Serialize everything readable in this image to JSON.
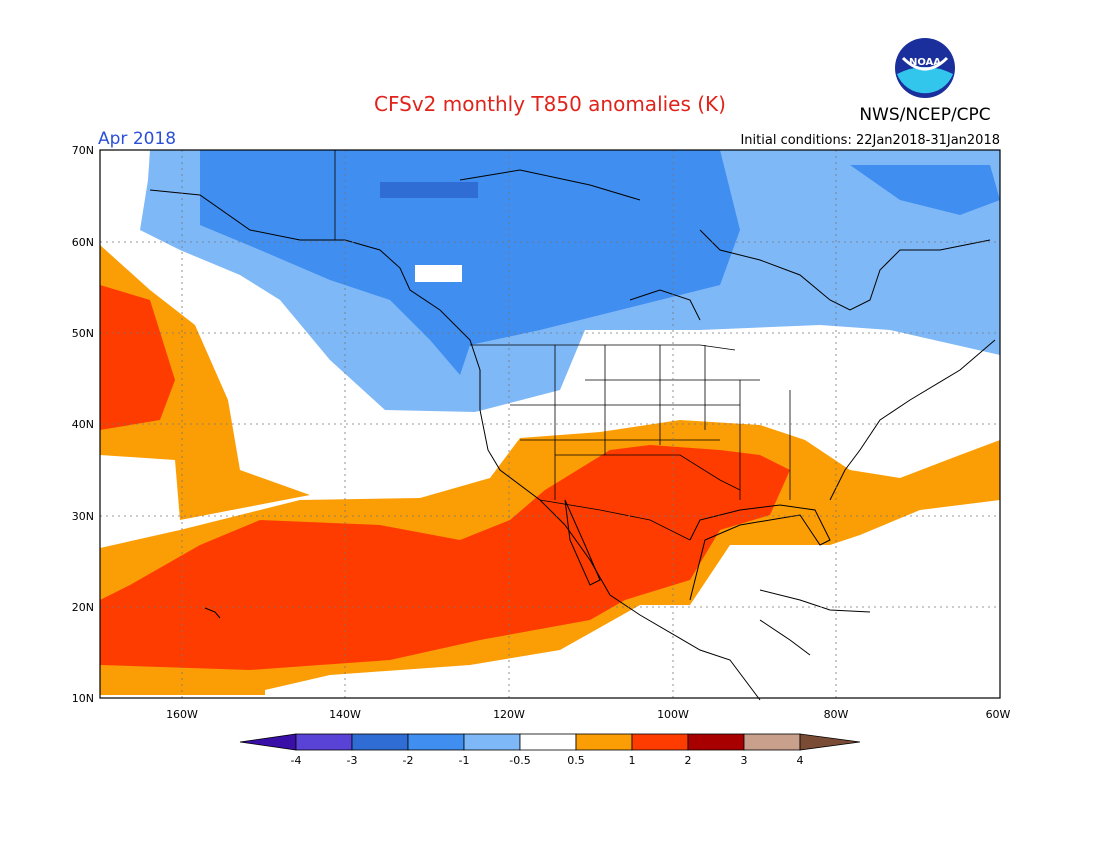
{
  "title": "CFSv2 monthly T850 anomalies (K)",
  "org": "NWS/NCEP/CPC",
  "logo_text": "NOAA",
  "period": "Apr 2018",
  "initial_conditions": "Initial conditions: 22Jan2018-31Jan2018",
  "colors": {
    "title": "#e0241c",
    "period": "#2b4fd8",
    "lt_m4": "#3a0fa8",
    "m4_m3": "#5843d6",
    "m3_m2": "#2f6dd4",
    "m2_m1": "#3f8ef0",
    "m1_m05": "#7fb8f7",
    "neutral": "#ffffff",
    "p05_p1": "#fb9e05",
    "p1_p2": "#ff3c00",
    "p2_p3": "#a80000",
    "p3_p4": "#c9a08c",
    "gt_p4": "#7a4c36"
  },
  "map": {
    "lat_ticks": [
      "70N",
      "60N",
      "50N",
      "40N",
      "30N",
      "20N",
      "10N"
    ],
    "lon_ticks": [
      "160W",
      "140W",
      "120W",
      "100W",
      "80W",
      "60W"
    ]
  },
  "legend": {
    "labels": [
      "-4",
      "-3",
      "-2",
      "-1",
      "-0.5",
      "0.5",
      "1",
      "2",
      "3",
      "4"
    ]
  }
}
